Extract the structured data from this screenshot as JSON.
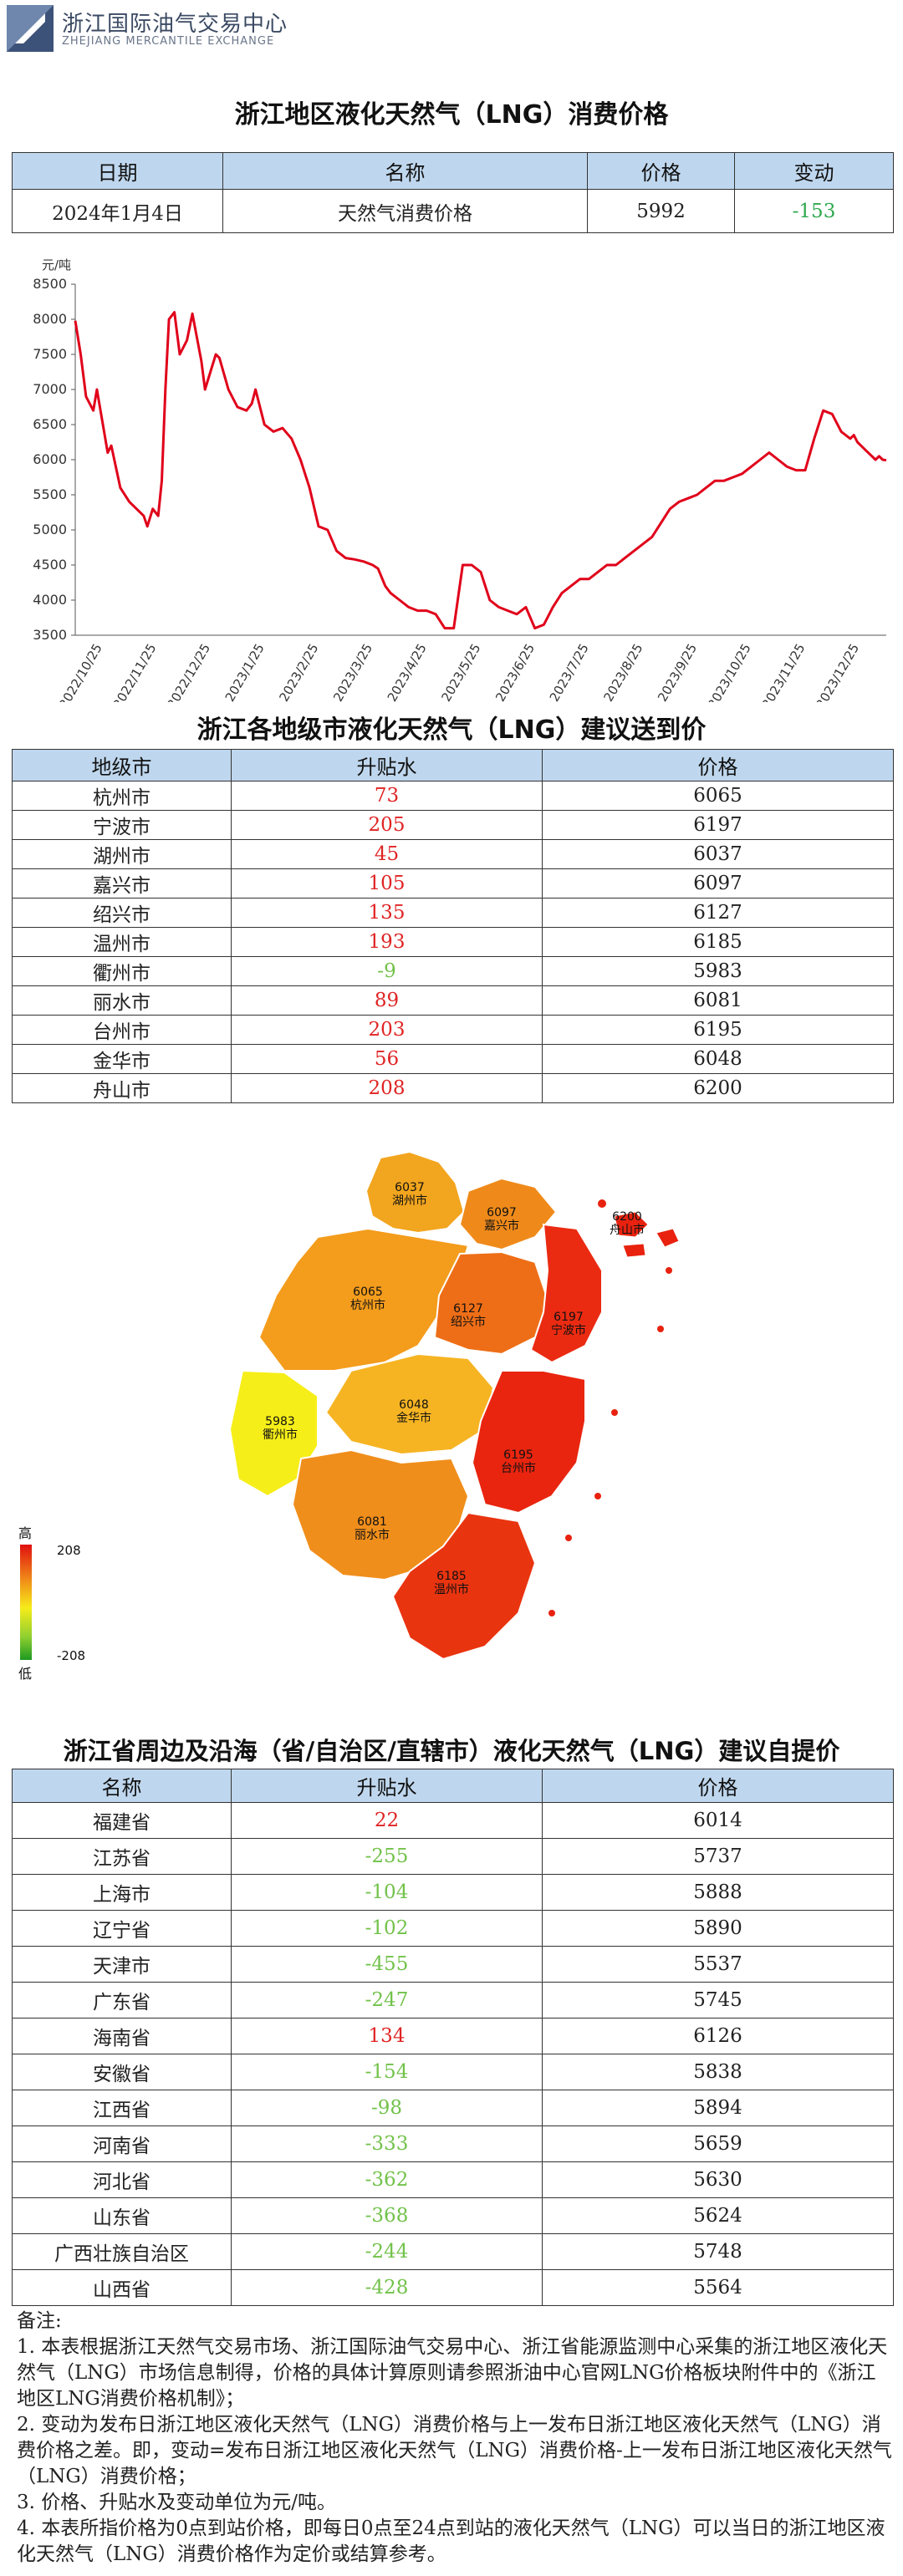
{
  "header": {
    "org_cn": "浙江国际油气交易中心",
    "org_en": "ZHEJIANG MERCANTILE EXCHANGE"
  },
  "section1": {
    "title": "浙江地区液化天然气（LNG）消费价格",
    "columns": [
      "日期",
      "名称",
      "价格",
      "变动"
    ],
    "row": {
      "date": "2024年1月4日",
      "name": "天然气消费价格",
      "price": "5992",
      "change": "-153"
    }
  },
  "chart_data": {
    "type": "line",
    "ylabel": "元/吨",
    "ylim": [
      3500,
      8500
    ],
    "yticks": [
      3500,
      4000,
      4500,
      5000,
      5500,
      6000,
      6500,
      7000,
      7500,
      8000,
      8500
    ],
    "xticks": [
      "2022/10/25",
      "2022/11/25",
      "2022/12/25",
      "2023/1/25",
      "2023/2/25",
      "2023/3/25",
      "2023/4/25",
      "2023/5/25",
      "2023/6/25",
      "2023/7/25",
      "2023/8/25",
      "2023/9/25",
      "2023/10/25",
      "2023/11/25",
      "2023/12/25"
    ],
    "x": [
      0,
      3,
      6,
      10,
      12,
      18,
      20,
      25,
      30,
      34,
      38,
      40,
      43,
      46,
      48,
      50,
      52,
      55,
      58,
      62,
      65,
      70,
      72,
      78,
      80,
      85,
      90,
      95,
      98,
      100,
      105,
      110,
      115,
      120,
      125,
      130,
      135,
      140,
      145,
      150,
      155,
      160,
      165,
      168,
      172,
      175,
      180,
      185,
      190,
      195,
      200,
      205,
      210,
      215,
      220,
      225,
      230,
      235,
      240,
      245,
      250,
      255,
      260,
      265,
      270,
      275,
      280,
      285,
      290,
      295,
      300,
      305,
      310,
      315,
      320,
      325,
      330,
      335,
      340,
      345,
      350,
      355,
      360,
      365,
      370,
      375,
      380,
      385,
      390,
      395,
      400,
      405,
      410,
      415,
      420,
      425,
      430,
      432,
      434,
      436,
      438,
      440,
      442,
      444,
      446,
      448,
      450
    ],
    "values": [
      7980,
      7500,
      6900,
      6700,
      7000,
      6100,
      6200,
      5600,
      5400,
      5300,
      5200,
      5050,
      5300,
      5200,
      5700,
      7000,
      8000,
      8100,
      7500,
      7700,
      8080,
      7400,
      7000,
      7500,
      7450,
      7000,
      6750,
      6700,
      6800,
      7000,
      6500,
      6400,
      6450,
      6300,
      6000,
      5600,
      5050,
      5000,
      4700,
      4600,
      4580,
      4550,
      4500,
      4450,
      4200,
      4100,
      4000,
      3900,
      3850,
      3850,
      3800,
      3600,
      3600,
      4500,
      4500,
      4400,
      4000,
      3900,
      3850,
      3800,
      3900,
      3600,
      3650,
      3900,
      4100,
      4200,
      4300,
      4300,
      4400,
      4500,
      4500,
      4600,
      4700,
      4800,
      4900,
      5100,
      5300,
      5400,
      5450,
      5500,
      5600,
      5700,
      5700,
      5750,
      5800,
      5900,
      6000,
      6100,
      6000,
      5900,
      5850,
      5850,
      6300,
      6700,
      6650,
      6400,
      6300,
      6350,
      6250,
      6200,
      6150,
      6100,
      6050,
      6000,
      6050,
      6000,
      5992
    ]
  },
  "section2": {
    "title": "浙江各地级市液化天然气（LNG）建议送到价",
    "columns": [
      "地级市",
      "升贴水",
      "价格"
    ],
    "rows": [
      {
        "city": "杭州市",
        "premium": "73",
        "price": "6065"
      },
      {
        "city": "宁波市",
        "premium": "205",
        "price": "6197"
      },
      {
        "city": "湖州市",
        "premium": "45",
        "price": "6037"
      },
      {
        "city": "嘉兴市",
        "premium": "105",
        "price": "6097"
      },
      {
        "city": "绍兴市",
        "premium": "135",
        "price": "6127"
      },
      {
        "city": "温州市",
        "premium": "193",
        "price": "6185"
      },
      {
        "city": "衢州市",
        "premium": "-9",
        "price": "5983"
      },
      {
        "city": "丽水市",
        "premium": "89",
        "price": "6081"
      },
      {
        "city": "台州市",
        "premium": "203",
        "price": "6195"
      },
      {
        "city": "金华市",
        "premium": "56",
        "price": "6048"
      },
      {
        "city": "舟山市",
        "premium": "208",
        "price": "6200"
      }
    ]
  },
  "map": {
    "legend_high": "高",
    "legend_low": "低",
    "legend_max": "208",
    "legend_min": "-208",
    "regions": [
      {
        "name": "湖州市",
        "price": "6037",
        "color": "#f2a51e"
      },
      {
        "name": "嘉兴市",
        "price": "6097",
        "color": "#ef8a1a"
      },
      {
        "name": "杭州市",
        "price": "6065",
        "color": "#f49c1c"
      },
      {
        "name": "绍兴市",
        "price": "6127",
        "color": "#ee6e17"
      },
      {
        "name": "宁波市",
        "price": "6197",
        "color": "#ea2b12"
      },
      {
        "name": "舟山市",
        "price": "6200",
        "color": "#e8220f"
      },
      {
        "name": "衢州市",
        "price": "5983",
        "color": "#f6ee18"
      },
      {
        "name": "金华市",
        "price": "6048",
        "color": "#f6b423"
      },
      {
        "name": "丽水市",
        "price": "6081",
        "color": "#f08e1b"
      },
      {
        "name": "台州市",
        "price": "6195",
        "color": "#e9250f"
      },
      {
        "name": "温州市",
        "price": "6185",
        "color": "#e93410"
      }
    ]
  },
  "section3": {
    "title": "浙江省周边及沿海（省/自治区/直辖市）液化天然气（LNG）建议自提价",
    "columns": [
      "名称",
      "升贴水",
      "价格"
    ],
    "rows": [
      {
        "name": "福建省",
        "premium": "22",
        "price": "6014"
      },
      {
        "name": "江苏省",
        "premium": "-255",
        "price": "5737"
      },
      {
        "name": "上海市",
        "premium": "-104",
        "price": "5888"
      },
      {
        "name": "辽宁省",
        "premium": "-102",
        "price": "5890"
      },
      {
        "name": "天津市",
        "premium": "-455",
        "price": "5537"
      },
      {
        "name": "广东省",
        "premium": "-247",
        "price": "5745"
      },
      {
        "name": "海南省",
        "premium": "134",
        "price": "6126"
      },
      {
        "name": "安徽省",
        "premium": "-154",
        "price": "5838"
      },
      {
        "name": "江西省",
        "premium": "-98",
        "price": "5894"
      },
      {
        "name": "河南省",
        "premium": "-333",
        "price": "5659"
      },
      {
        "name": "河北省",
        "premium": "-362",
        "price": "5630"
      },
      {
        "name": "山东省",
        "premium": "-368",
        "price": "5624"
      },
      {
        "name": "广西壮族自治区",
        "premium": "-244",
        "price": "5748"
      },
      {
        "name": "山西省",
        "premium": "-428",
        "price": "5564"
      }
    ]
  },
  "notes": {
    "heading": "备注:",
    "lines": [
      "1. 本表根据浙江天然气交易市场、浙江国际油气交易中心、浙江省能源监测中心采集的浙江地区液化天然气（LNG）市场信息制得，价格的具体计算原则请参照浙油中心官网LNG价格板块附件中的《浙江地区LNG消费价格机制》；",
      "2. 变动为发布日浙江地区液化天然气（LNG）消费价格与上一发布日浙江地区液化天然气（LNG）消费价格之差。即，变动=发布日浙江地区液化天然气（LNG）消费价格-上一发布日浙江地区液化天然气（LNG）消费价格；",
      "3. 价格、升贴水及变动单位为元/吨。",
      "4. 本表所指价格为0点到站价格，即每日0点至24点到站的液化天然气（LNG）可以当日的浙江地区液化天然气（LNG）消费价格作为定价或结算参考。"
    ]
  }
}
